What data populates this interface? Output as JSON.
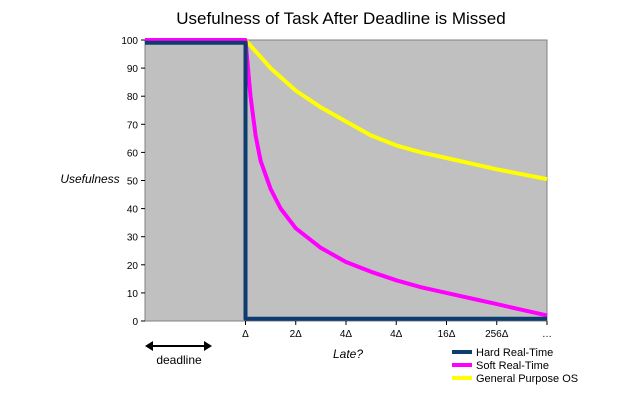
{
  "chart_data": {
    "type": "line",
    "title": "Usefulness of Task After Deadline is Missed",
    "xlabel": "Late?",
    "ylabel": "Usefulness",
    "ylim": [
      0,
      100
    ],
    "yticks": [
      0,
      10,
      20,
      30,
      40,
      50,
      60,
      70,
      80,
      90,
      100
    ],
    "xlim": [
      -2,
      6
    ],
    "x_tick_positions": [
      0,
      2,
      4,
      6
    ],
    "x_tick_labels": [
      "Δ",
      "4Δ",
      "16Δ",
      "…"
    ],
    "x_minor_positions": [
      1,
      3,
      5
    ],
    "x_minor_labels": [
      "2Δ",
      "4Δ",
      "256Δ"
    ],
    "grid": false,
    "plot_background": "#c0c0c0",
    "legend_position": "bottom-right",
    "deadline_annotation": "deadline",
    "series": [
      {
        "name": "Hard Real-Time",
        "color": "#0d3d6e",
        "points": [
          [
            -2,
            99
          ],
          [
            0,
            99
          ],
          [
            0,
            0.8
          ],
          [
            6,
            0.8
          ]
        ]
      },
      {
        "name": "Soft Real-Time",
        "color": "#ff00ff",
        "points": [
          [
            -2,
            100
          ],
          [
            0,
            100
          ],
          [
            0.1,
            80
          ],
          [
            0.2,
            66
          ],
          [
            0.3,
            57
          ],
          [
            0.5,
            47
          ],
          [
            0.7,
            40
          ],
          [
            1,
            33
          ],
          [
            1.5,
            26
          ],
          [
            2,
            21
          ],
          [
            2.5,
            17.5
          ],
          [
            3,
            14.5
          ],
          [
            3.5,
            12
          ],
          [
            4,
            10
          ],
          [
            4.5,
            8
          ],
          [
            5,
            6
          ],
          [
            5.5,
            4
          ],
          [
            6,
            2
          ]
        ]
      },
      {
        "name": "General Purpose OS",
        "color": "#ffff00",
        "points": [
          [
            -2,
            100
          ],
          [
            0,
            100
          ],
          [
            0.5,
            90
          ],
          [
            1,
            82
          ],
          [
            1.5,
            76
          ],
          [
            2,
            71
          ],
          [
            2.5,
            66
          ],
          [
            3,
            62.5
          ],
          [
            3.5,
            60
          ],
          [
            4,
            58
          ],
          [
            5,
            54
          ],
          [
            6,
            50.5
          ]
        ]
      }
    ]
  }
}
